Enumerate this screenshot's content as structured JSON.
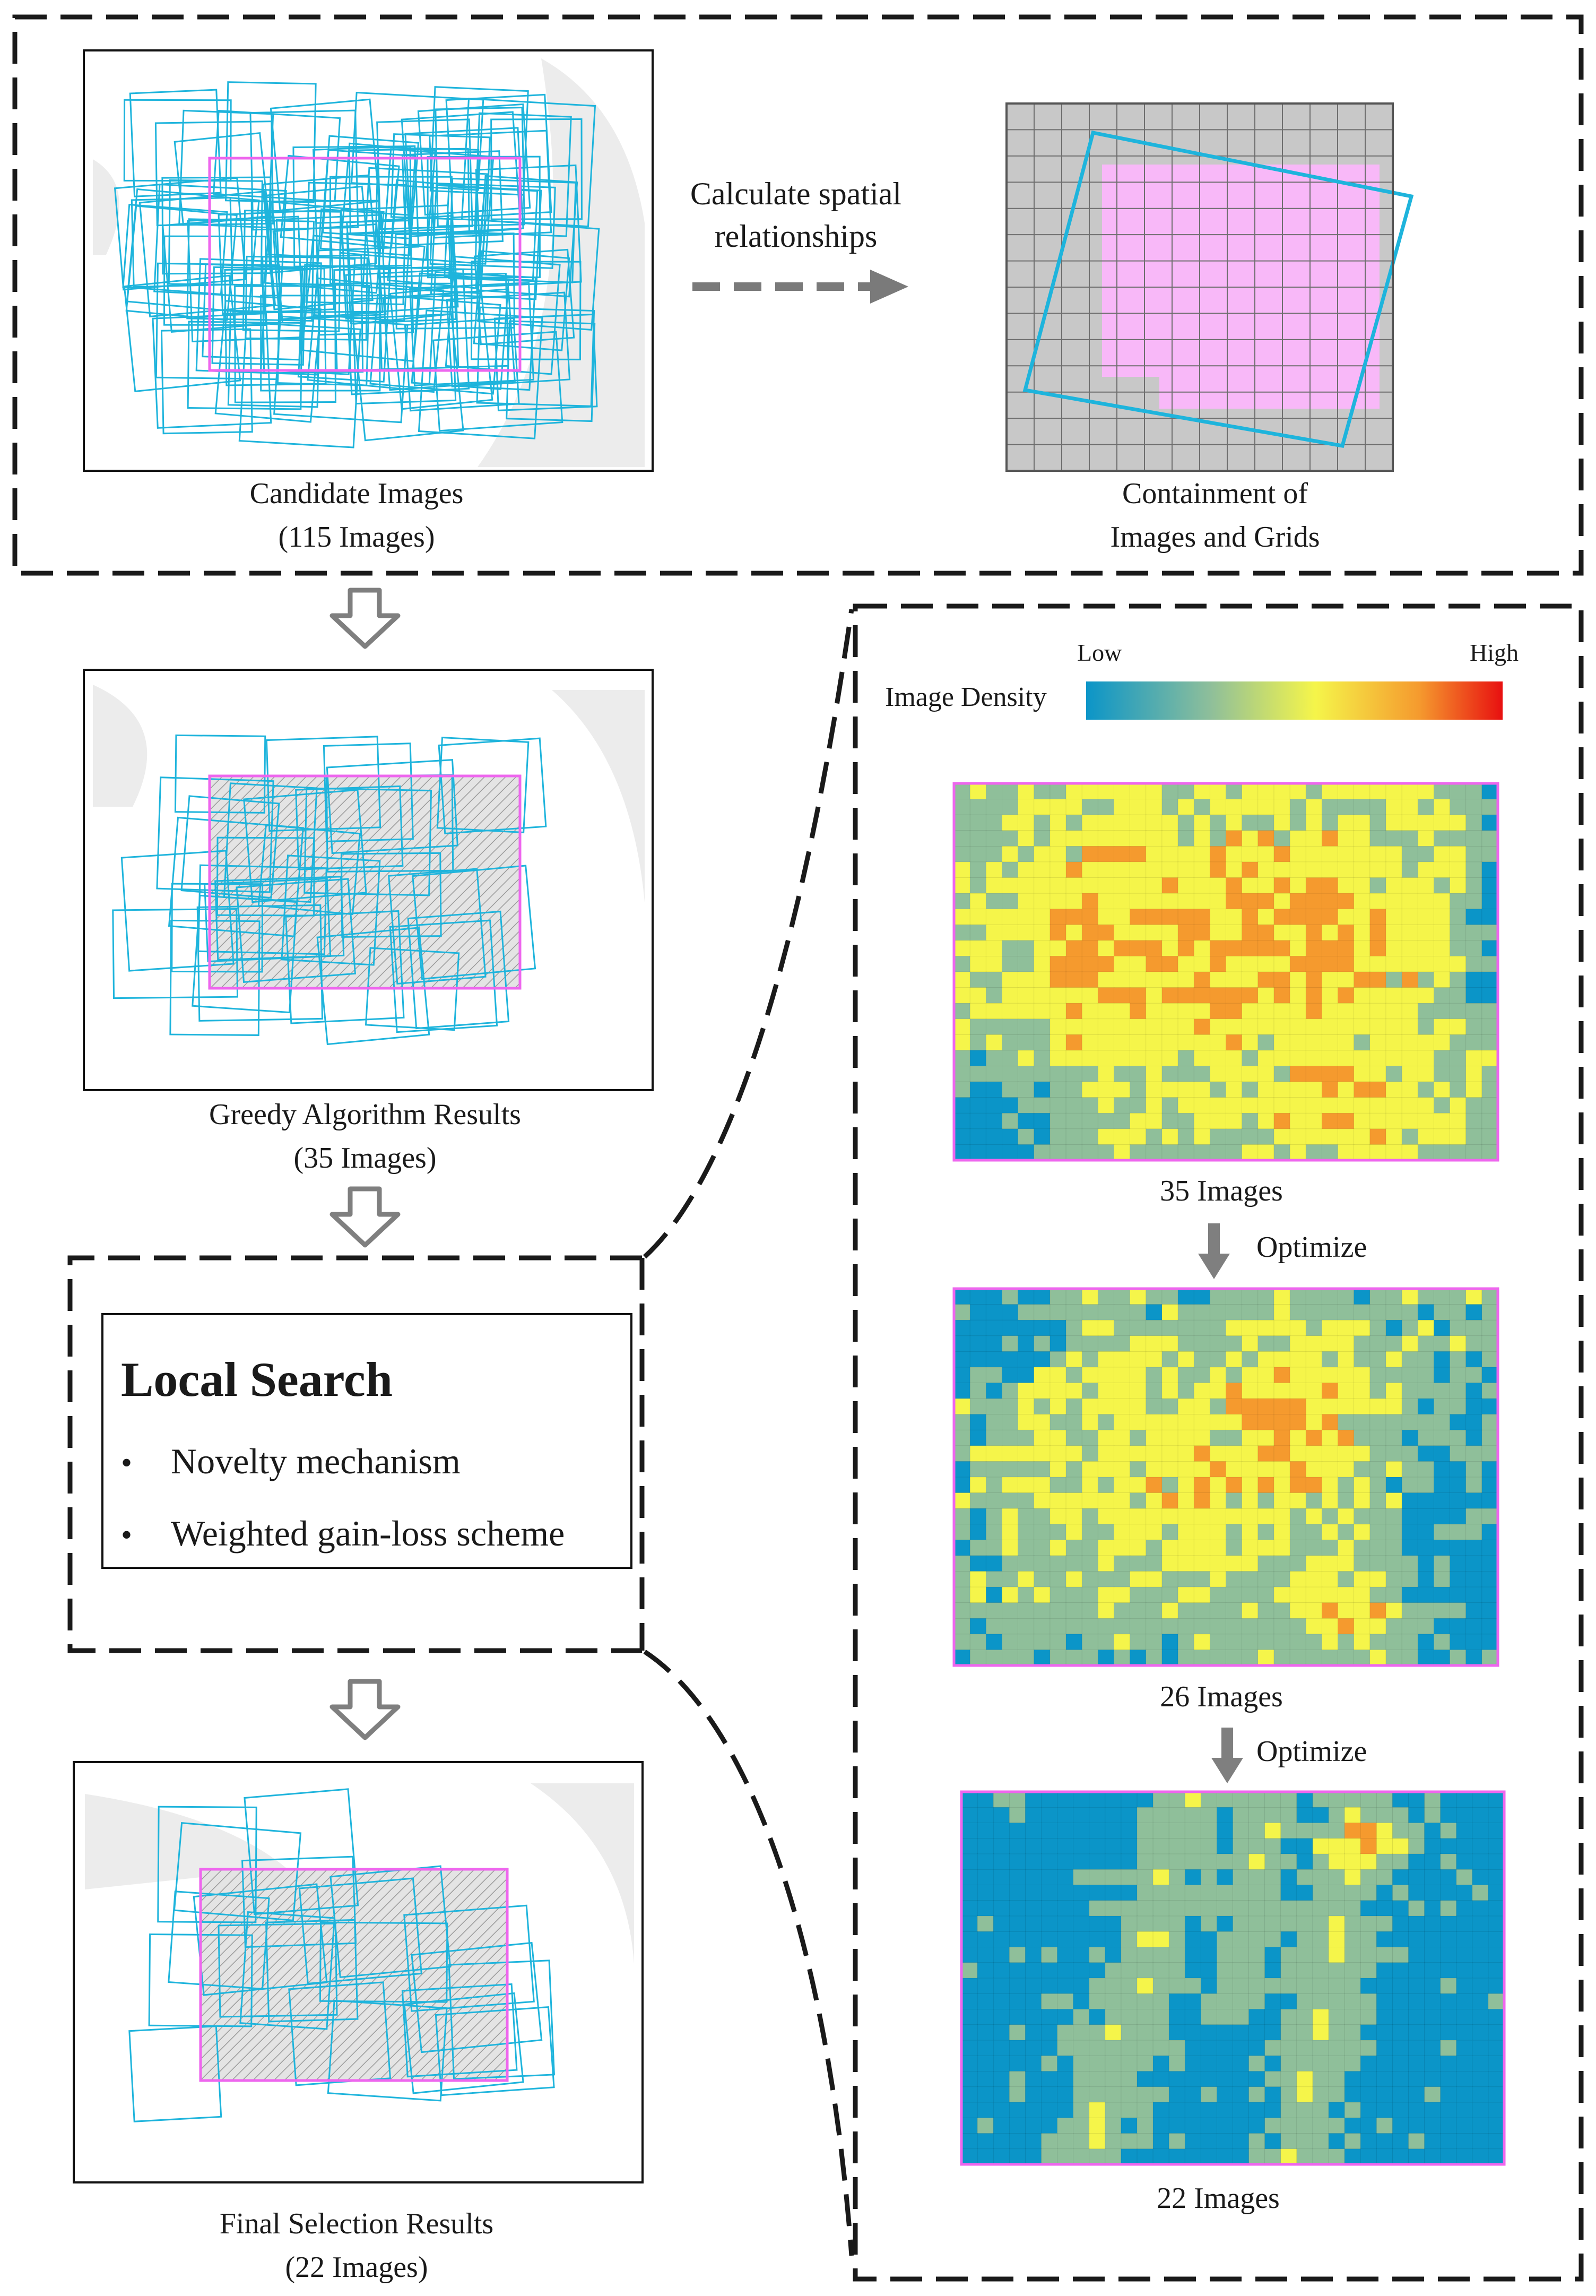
{
  "panels": {
    "candidate": {
      "caption_line1": "Candidate Images",
      "caption_line2": "(115 Images)"
    },
    "containment": {
      "caption_line1": "Containment of",
      "caption_line2": "Images and Grids"
    },
    "greedy": {
      "caption_line1": "Greedy Algorithm Results",
      "caption_line2": "(35 Images)"
    },
    "final": {
      "caption_line1": "Final Selection Results",
      "caption_line2": "(22 Images)"
    }
  },
  "arrow_label": {
    "line1": "Calculate spatial",
    "line2": "relationships"
  },
  "local_search": {
    "title": "Local Search",
    "items": [
      "Novelty mechanism",
      "Weighted gain-loss scheme"
    ],
    "bullet": "•"
  },
  "density": {
    "legend_title": "Image Density",
    "low_label": "Low",
    "high_label": "High",
    "maps": [
      {
        "label": "35 Images"
      },
      {
        "label": "26 Images"
      },
      {
        "label": "22 Images"
      }
    ],
    "optimize_label": "Optimize"
  },
  "colors": {
    "footprint": "#1eb4dc",
    "aoi": "#ee66ee",
    "aoi_fill": "#f8b8f8",
    "grid_fill": "#c8c8c8",
    "arrow_gray": "#808080",
    "density_scale": [
      "#0b95c8",
      "#8fbf9a",
      "#f5f54a",
      "#f59a2e",
      "#e81010"
    ]
  }
}
